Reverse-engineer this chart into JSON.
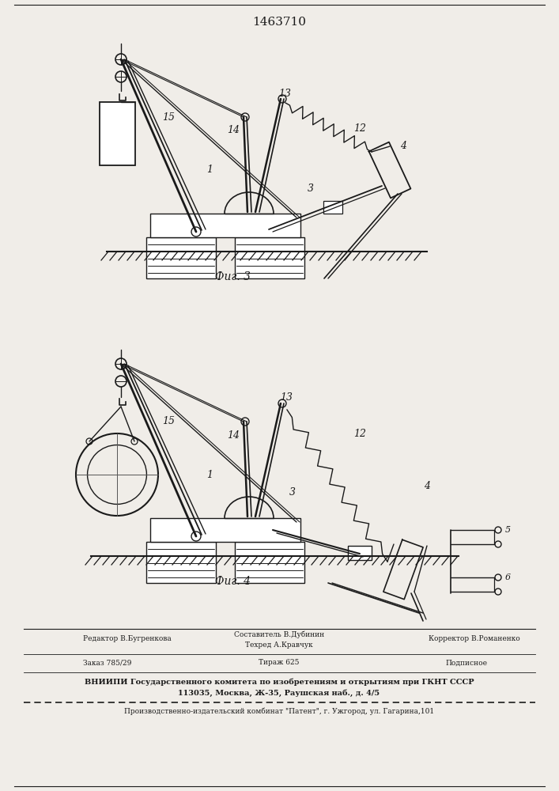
{
  "title": "1463710",
  "fig3_label": "Фиг. 3",
  "fig4_label": "Фиг. 4",
  "bg_color": "#f0ede8",
  "line_color": "#1a1a1a",
  "footer": {
    "editor": "Редактор В.Бугренкова",
    "composer": "Составитель В.Дубинин",
    "techred": "Техред А.Кравчук",
    "corrector": "Корректор В.Романенко",
    "order": "Заказ 785/29",
    "circulation": "Тираж 625",
    "subscription": "Подписное",
    "vnipi1": "ВНИИПИ Государственного комитета по изобретениям и открытиям при ГКНТ СССР",
    "vnipi2": "113035, Москва, Ж-35, Раушская наб., д. 4/5",
    "production": "Производственно-издательский комбинат \"Патент\", г. Ужгород, ул. Гагарина,101"
  }
}
